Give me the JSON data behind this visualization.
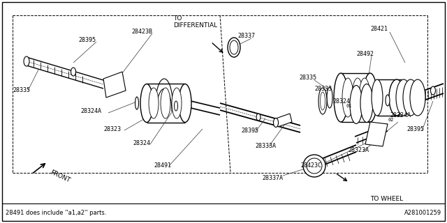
{
  "bg_color": "#ffffff",
  "border_color": "#000000",
  "line_color": "#000000",
  "fig_width": 6.4,
  "fig_height": 3.2,
  "dpi": 100,
  "footer_text": "28491 does include ''a1,a2'' parts.",
  "ref_code": "A281001259",
  "to_differential": "TO\nDIFFERENTIAL",
  "to_wheel": "TO WHEEL",
  "front_label": "FRONT"
}
